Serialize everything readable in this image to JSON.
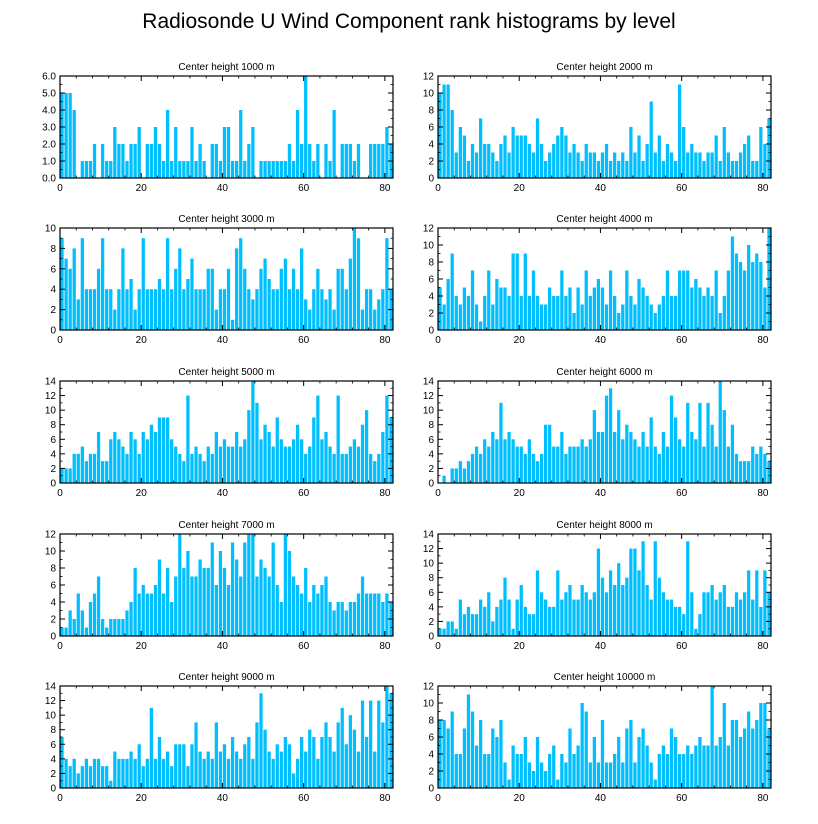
{
  "title": "Radiosonde U Wind Component rank histograms by level",
  "colors": {
    "bar": "#00bfff",
    "bar_edge": "#ffffff",
    "axis": "#000000",
    "background": "#ffffff"
  },
  "chart_data": [
    {
      "type": "bar",
      "title": "Center height 1000 m",
      "xlabel": "",
      "ylabel": "",
      "xlim": [
        0,
        82
      ],
      "ylim": [
        0,
        6
      ],
      "grid": false,
      "xticks": [
        0,
        20,
        40,
        60,
        80
      ],
      "xtick_labels": [
        "0",
        "20",
        "40",
        "60",
        "80"
      ],
      "yticks": [
        0,
        1,
        2,
        3,
        4,
        5,
        6
      ],
      "ytick_labels": [
        "0.0",
        "1.0",
        "2.0",
        "3.0",
        "4.0",
        "5.0",
        "6.0"
      ],
      "values": [
        5,
        5,
        5,
        4,
        0,
        1,
        1,
        1,
        2,
        0,
        2,
        1,
        1,
        3,
        2,
        2,
        1,
        2,
        2,
        3,
        0,
        2,
        2,
        3,
        2,
        1,
        4,
        1,
        3,
        1,
        1,
        1,
        3,
        1,
        2,
        1,
        0,
        2,
        2,
        1,
        3,
        3,
        1,
        1,
        4,
        1,
        2,
        3,
        0,
        1,
        1,
        1,
        1,
        1,
        1,
        1,
        2,
        1,
        4,
        2,
        6,
        2,
        1,
        2,
        0,
        2,
        1,
        4,
        0,
        2,
        2,
        2,
        1,
        2,
        0,
        0,
        2,
        2,
        2,
        2,
        3,
        2
      ]
    },
    {
      "type": "bar",
      "title": "Center height 2000 m",
      "xlabel": "",
      "ylabel": "",
      "xlim": [
        0,
        82
      ],
      "ylim": [
        0,
        12
      ],
      "grid": false,
      "xticks": [
        0,
        20,
        40,
        60,
        80
      ],
      "xtick_labels": [
        "0",
        "20",
        "40",
        "60",
        "80"
      ],
      "yticks": [
        0,
        2,
        4,
        6,
        8,
        10,
        12
      ],
      "ytick_labels": [
        "0",
        "2",
        "4",
        "6",
        "8",
        "10",
        "12"
      ],
      "values": [
        10,
        11,
        11,
        8,
        3,
        6,
        5,
        2,
        4,
        3,
        7,
        4,
        4,
        3,
        2,
        4,
        5,
        3,
        6,
        5,
        5,
        5,
        4,
        3,
        7,
        4,
        2,
        3,
        4,
        5,
        6,
        5,
        3,
        4,
        3,
        2,
        4,
        3,
        3,
        2,
        3,
        4,
        2,
        3,
        2,
        3,
        2,
        6,
        3,
        5,
        2,
        4,
        9,
        3,
        5,
        2,
        4,
        3,
        2,
        11,
        6,
        3,
        4,
        3,
        3,
        2,
        3,
        3,
        5,
        2,
        6,
        3,
        2,
        2,
        3,
        4,
        5,
        2,
        2,
        6,
        4,
        7
      ]
    },
    {
      "type": "bar",
      "title": "Center height 3000 m",
      "xlabel": "",
      "ylabel": "",
      "xlim": [
        0,
        82
      ],
      "ylim": [
        0,
        10
      ],
      "grid": false,
      "xticks": [
        0,
        20,
        40,
        60,
        80
      ],
      "xtick_labels": [
        "0",
        "20",
        "40",
        "60",
        "80"
      ],
      "yticks": [
        0,
        2,
        4,
        6,
        8,
        10
      ],
      "ytick_labels": [
        "0",
        "2",
        "4",
        "6",
        "8",
        "10"
      ],
      "values": [
        9,
        7,
        6,
        8,
        3,
        9,
        4,
        4,
        4,
        6,
        9,
        4,
        4,
        2,
        4,
        8,
        4,
        5,
        2,
        4,
        9,
        4,
        4,
        4,
        5,
        4,
        9,
        4,
        6,
        8,
        4,
        5,
        7,
        4,
        4,
        4,
        6,
        6,
        2,
        4,
        4,
        6,
        1,
        8,
        9,
        6,
        4,
        3,
        4,
        6,
        7,
        5,
        4,
        4,
        6,
        7,
        4,
        6,
        4,
        8,
        3,
        2,
        4,
        6,
        4,
        3,
        4,
        2,
        6,
        6,
        4,
        7,
        10,
        9,
        2,
        4,
        4,
        2,
        3,
        4,
        9,
        4
      ]
    },
    {
      "type": "bar",
      "title": "Center height 4000 m",
      "xlabel": "",
      "ylabel": "",
      "xlim": [
        0,
        82
      ],
      "ylim": [
        0,
        12
      ],
      "grid": false,
      "xticks": [
        0,
        20,
        40,
        60,
        80
      ],
      "xtick_labels": [
        "0",
        "20",
        "40",
        "60",
        "80"
      ],
      "yticks": [
        0,
        2,
        4,
        6,
        8,
        10,
        12
      ],
      "ytick_labels": [
        "0",
        "2",
        "4",
        "6",
        "8",
        "10",
        "12"
      ],
      "values": [
        5,
        3,
        6,
        9,
        4,
        3,
        5,
        4,
        7,
        3,
        1,
        4,
        7,
        3,
        6,
        5,
        5,
        4,
        9,
        9,
        4,
        9,
        4,
        7,
        4,
        3,
        3,
        5,
        4,
        4,
        7,
        4,
        5,
        2,
        5,
        3,
        7,
        4,
        5,
        6,
        5,
        3,
        7,
        4,
        2,
        3,
        7,
        4,
        3,
        6,
        5,
        4,
        3,
        2,
        3,
        4,
        7,
        4,
        4,
        7,
        7,
        7,
        5,
        6,
        5,
        4,
        5,
        4,
        7,
        2,
        4,
        7,
        11,
        9,
        8,
        7,
        10,
        8,
        9,
        8,
        5,
        12
      ]
    },
    {
      "type": "bar",
      "title": "Center height 5000 m",
      "xlabel": "",
      "ylabel": "",
      "xlim": [
        0,
        82
      ],
      "ylim": [
        0,
        14
      ],
      "grid": false,
      "xticks": [
        0,
        20,
        40,
        60,
        80
      ],
      "xtick_labels": [
        "0",
        "20",
        "40",
        "60",
        "80"
      ],
      "yticks": [
        0,
        2,
        4,
        6,
        8,
        10,
        12,
        14
      ],
      "ytick_labels": [
        "0",
        "2",
        "4",
        "6",
        "8",
        "10",
        "12",
        "14"
      ],
      "values": [
        2,
        2,
        2,
        4,
        4,
        5,
        3,
        4,
        4,
        7,
        3,
        3,
        6,
        7,
        6,
        5,
        4,
        7,
        6,
        4,
        7,
        6,
        8,
        7,
        9,
        9,
        9,
        6,
        5,
        4,
        3,
        12,
        4,
        5,
        4,
        3,
        5,
        4,
        7,
        5,
        6,
        5,
        5,
        7,
        5,
        6,
        10,
        14,
        11,
        6,
        8,
        7,
        5,
        9,
        6,
        5,
        5,
        6,
        8,
        6,
        4,
        5,
        9,
        12,
        6,
        7,
        5,
        4,
        12,
        4,
        4,
        5,
        6,
        5,
        8,
        10,
        4,
        3,
        4,
        7,
        12,
        9
      ]
    },
    {
      "type": "bar",
      "title": "Center height 6000 m",
      "xlabel": "",
      "ylabel": "",
      "xlim": [
        0,
        82
      ],
      "ylim": [
        0,
        14
      ],
      "grid": false,
      "xticks": [
        0,
        20,
        40,
        60,
        80
      ],
      "xtick_labels": [
        "0",
        "20",
        "40",
        "60",
        "80"
      ],
      "yticks": [
        0,
        2,
        4,
        6,
        8,
        10,
        12,
        14
      ],
      "ytick_labels": [
        "0",
        "2",
        "4",
        "6",
        "8",
        "10",
        "12",
        "14"
      ],
      "values": [
        0,
        1,
        0,
        2,
        2,
        3,
        2,
        3,
        4,
        5,
        4,
        6,
        5,
        7,
        6,
        11,
        6,
        7,
        6,
        5,
        5,
        4,
        6,
        4,
        3,
        4,
        8,
        8,
        5,
        5,
        7,
        4,
        5,
        5,
        5,
        6,
        5,
        6,
        10,
        7,
        7,
        12,
        13,
        7,
        10,
        6,
        8,
        7,
        6,
        5,
        7,
        5,
        9,
        5,
        4,
        7,
        5,
        12,
        9,
        6,
        5,
        11,
        7,
        6,
        11,
        5,
        11,
        8,
        5,
        14,
        10,
        5,
        8,
        4,
        3,
        3,
        3,
        5,
        4,
        5,
        4,
        3
      ]
    },
    {
      "type": "bar",
      "title": "Center height 7000 m",
      "xlabel": "",
      "ylabel": "",
      "xlim": [
        0,
        82
      ],
      "ylim": [
        0,
        12
      ],
      "grid": false,
      "xticks": [
        0,
        20,
        40,
        60,
        80
      ],
      "xtick_labels": [
        "0",
        "20",
        "40",
        "60",
        "80"
      ],
      "yticks": [
        0,
        2,
        4,
        6,
        8,
        10,
        12
      ],
      "ytick_labels": [
        "0",
        "2",
        "4",
        "6",
        "8",
        "10",
        "12"
      ],
      "values": [
        1,
        1,
        3,
        2,
        5,
        3,
        1,
        4,
        5,
        7,
        2,
        1,
        2,
        2,
        2,
        2,
        3,
        4,
        8,
        5,
        6,
        5,
        5,
        6,
        9,
        5,
        8,
        4,
        7,
        12,
        8,
        10,
        7,
        7,
        9,
        8,
        8,
        11,
        6,
        10,
        8,
        6,
        11,
        9,
        7,
        11,
        12,
        12,
        7,
        9,
        8,
        7,
        11,
        6,
        4,
        12,
        10,
        7,
        6,
        5,
        8,
        4,
        6,
        5,
        6,
        7,
        4,
        3,
        4,
        4,
        3,
        4,
        4,
        5,
        7,
        5,
        5,
        5,
        5,
        4,
        5,
        4
      ]
    },
    {
      "type": "bar",
      "title": "Center height 8000 m",
      "xlabel": "",
      "ylabel": "",
      "xlim": [
        0,
        82
      ],
      "ylim": [
        0,
        14
      ],
      "grid": false,
      "xticks": [
        0,
        20,
        40,
        60,
        80
      ],
      "xtick_labels": [
        "0",
        "20",
        "40",
        "60",
        "80"
      ],
      "yticks": [
        0,
        2,
        4,
        6,
        8,
        10,
        12,
        14
      ],
      "ytick_labels": [
        "0",
        "2",
        "4",
        "6",
        "8",
        "10",
        "12",
        "14"
      ],
      "values": [
        1,
        1,
        2,
        2,
        1,
        5,
        3,
        4,
        3,
        3,
        5,
        4,
        6,
        2,
        4,
        5,
        8,
        5,
        1,
        5,
        7,
        4,
        3,
        3,
        9,
        6,
        5,
        4,
        4,
        9,
        5,
        6,
        7,
        5,
        5,
        7,
        6,
        5,
        6,
        12,
        8,
        6,
        9,
        7,
        10,
        7,
        8,
        12,
        12,
        9,
        13,
        7,
        5,
        13,
        8,
        6,
        5,
        5,
        4,
        4,
        3,
        13,
        6,
        1,
        3,
        6,
        6,
        7,
        5,
        6,
        7,
        4,
        4,
        6,
        5,
        6,
        9,
        5,
        9,
        4,
        9,
        6
      ]
    },
    {
      "type": "bar",
      "title": "Center height 9000 m",
      "xlabel": "",
      "ylabel": "",
      "xlim": [
        0,
        82
      ],
      "ylim": [
        0,
        14
      ],
      "grid": false,
      "xticks": [
        0,
        20,
        40,
        60,
        80
      ],
      "xtick_labels": [
        "0",
        "20",
        "40",
        "60",
        "80"
      ],
      "yticks": [
        0,
        2,
        4,
        6,
        8,
        10,
        12,
        14
      ],
      "ytick_labels": [
        "0",
        "2",
        "4",
        "6",
        "8",
        "10",
        "12",
        "14"
      ],
      "values": [
        7,
        4,
        3,
        4,
        2,
        3,
        4,
        3,
        4,
        4,
        3,
        3,
        1,
        5,
        4,
        4,
        4,
        5,
        4,
        6,
        3,
        4,
        11,
        4,
        7,
        4,
        5,
        3,
        6,
        6,
        6,
        3,
        6,
        9,
        5,
        4,
        5,
        4,
        9,
        5,
        6,
        4,
        7,
        5,
        4,
        6,
        7,
        4,
        9,
        13,
        8,
        5,
        4,
        6,
        5,
        7,
        6,
        2,
        4,
        7,
        5,
        8,
        7,
        4,
        7,
        9,
        7,
        5,
        9,
        11,
        6,
        10,
        8,
        5,
        12,
        7,
        12,
        5,
        12,
        9,
        14,
        13
      ]
    },
    {
      "type": "bar",
      "title": "Center height 10000 m",
      "xlabel": "",
      "ylabel": "",
      "xlim": [
        0,
        82
      ],
      "ylim": [
        0,
        12
      ],
      "grid": false,
      "xticks": [
        0,
        20,
        40,
        60,
        80
      ],
      "xtick_labels": [
        "0",
        "20",
        "40",
        "60",
        "80"
      ],
      "yticks": [
        0,
        2,
        4,
        6,
        8,
        10,
        12
      ],
      "ytick_labels": [
        "0",
        "2",
        "4",
        "6",
        "8",
        "10",
        "12"
      ],
      "values": [
        8,
        8,
        7,
        9,
        4,
        4,
        7,
        11,
        9,
        5,
        8,
        4,
        4,
        7,
        6,
        8,
        3,
        1,
        5,
        4,
        4,
        6,
        3,
        2,
        6,
        3,
        2,
        4,
        5,
        1,
        4,
        3,
        7,
        4,
        5,
        10,
        9,
        3,
        6,
        3,
        8,
        3,
        3,
        4,
        6,
        3,
        7,
        8,
        3,
        6,
        7,
        5,
        3,
        1,
        4,
        5,
        4,
        7,
        6,
        4,
        4,
        5,
        4,
        5,
        6,
        5,
        5,
        12,
        5,
        6,
        10,
        5,
        8,
        8,
        6,
        7,
        9,
        7,
        8,
        10,
        10,
        7
      ]
    }
  ]
}
